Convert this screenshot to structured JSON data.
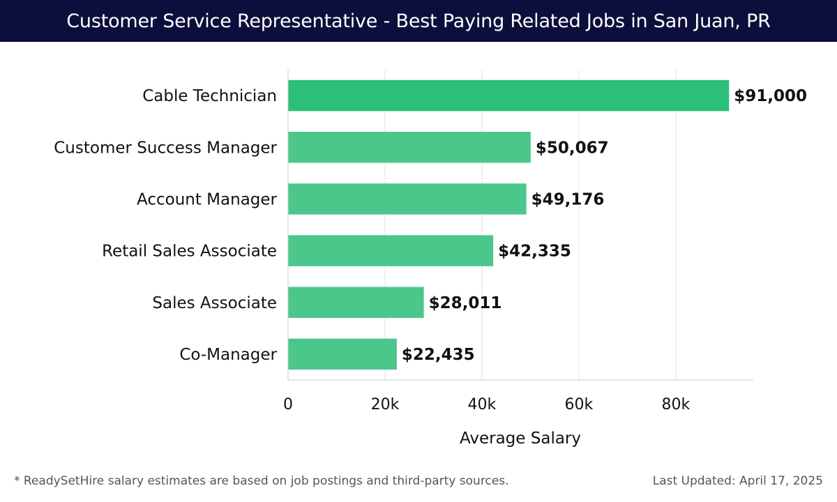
{
  "header": {
    "title": "Customer Service Representative - Best Paying Related Jobs in San Juan, PR",
    "background_color": "#0c0f3b"
  },
  "chart_data": {
    "type": "bar",
    "orientation": "horizontal",
    "categories": [
      "Cable Technician",
      "Customer Success Manager",
      "Account Manager",
      "Retail Sales Associate",
      "Sales Associate",
      "Co-Manager"
    ],
    "values": [
      91000,
      50067,
      49176,
      42335,
      28011,
      22435
    ],
    "value_labels": [
      "$91,000",
      "$50,067",
      "$49,176",
      "$42,335",
      "$28,011",
      "$22,435"
    ],
    "xlabel": "Average Salary",
    "ylabel": "",
    "xlim": [
      0,
      96000
    ],
    "x_ticks": [
      0,
      20000,
      40000,
      60000,
      80000
    ],
    "x_tick_labels": [
      "0",
      "20k",
      "40k",
      "60k",
      "80k"
    ],
    "grid": "vertical",
    "colors": {
      "highlight": "#2bbf78",
      "bar": "#4cc78c"
    }
  },
  "footer": {
    "note": "* ReadySetHire salary estimates are based on job postings and third-party sources.",
    "updated": "Last Updated: April 17, 2025"
  }
}
